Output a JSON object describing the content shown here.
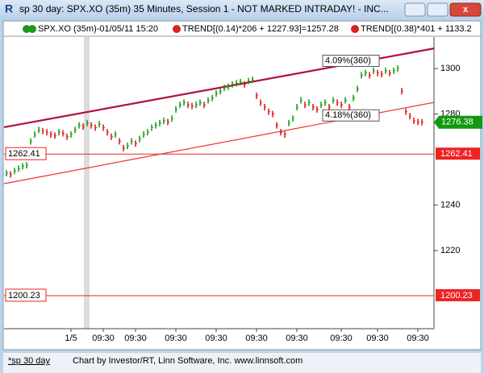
{
  "window": {
    "title": "sp 30 day: SPX.XO (35m) 35 Minutes, Session 1 - NOT MARKED INTRADAY! - INC...",
    "legend": [
      "SPX.XO (35m)-01/05/11 15:20",
      "TREND[(0.14)*206 + 1227.93]=1257.28",
      "TREND[(0.38)*401 + 1133.2"
    ],
    "tab": "*sp 30 day",
    "footer": "Chart by Investor/RT, Linn Software, Inc. www.linnsoft.com"
  },
  "chart_data": {
    "type": "bar-ticks",
    "categories": [
      null,
      null,
      null,
      null,
      null,
      null,
      null,
      null,
      null,
      null,
      null,
      null,
      null,
      null,
      null,
      null,
      "1/5",
      null,
      null,
      null,
      null,
      null,
      null,
      null,
      "09:30",
      null,
      null,
      null,
      null,
      null,
      null,
      null,
      "09:30",
      null,
      null,
      null,
      null,
      null,
      null,
      null,
      null,
      null,
      "09:30",
      null,
      null,
      null,
      null,
      null,
      null,
      null,
      null,
      null,
      "09:30",
      null,
      null,
      null,
      null,
      null,
      null,
      null,
      null,
      null,
      "09:30",
      null,
      null,
      null,
      null,
      null,
      null,
      null,
      null,
      null,
      "09:30",
      null,
      null,
      null,
      null,
      null,
      null,
      null,
      null,
      null,
      null,
      "09:30",
      null,
      null,
      null,
      null,
      null,
      null,
      null,
      null,
      "09:30",
      null,
      null,
      null,
      null,
      null,
      null,
      null,
      null,
      null,
      "09:30",
      null
    ],
    "values": [
      1254,
      1253.5,
      1255,
      1256,
      1257,
      1257.5,
      1268,
      1271,
      1273,
      1272.5,
      1272,
      1271,
      1270.5,
      1272,
      1271.5,
      1270,
      1271,
      1273,
      1275,
      1274.5,
      1276,
      1275,
      1274,
      1275.5,
      1274,
      1272,
      1270,
      1271,
      1268,
      1265,
      1266,
      1268,
      1267,
      1269,
      1271,
      1272,
      1274,
      1275,
      1276,
      1277,
      1276.5,
      1278,
      1282,
      1284,
      1285,
      1284,
      1283.5,
      1284,
      1285,
      1284,
      1286,
      1287,
      1289,
      1290,
      1291.5,
      1292,
      1293,
      1293.5,
      1294,
      1293,
      1294.5,
      1295,
      1288,
      1285,
      1283,
      1281,
      1280,
      1275,
      1272,
      1271,
      1276,
      1278,
      1283,
      1286,
      1284,
      1285,
      1283,
      1282,
      1284,
      1285,
      1283,
      1286,
      1285,
      1284,
      1286,
      1283,
      1287,
      1291,
      1297,
      1298,
      1297,
      1299,
      1298,
      1297.5,
      1299,
      1298,
      1299,
      1300,
      1290,
      1281,
      1279,
      1277,
      1276.5,
      1276.38
    ],
    "up_color": "#119911",
    "down_color": "#dd1111",
    "ylim": [
      1185.7,
      1313.8
    ],
    "yticks": [
      1220,
      1240,
      1280,
      1300
    ],
    "levels": [
      {
        "value": 1262.41,
        "color": "#ee2222"
      },
      {
        "value": 1200.23,
        "color": "#ee2222"
      }
    ],
    "last": {
      "value": 1276.38,
      "color": "#119911"
    },
    "trendlines": [
      {
        "label": "4.09%(360)",
        "start": 1274.2,
        "end": 1308.8,
        "color": "#b0103a"
      },
      {
        "label": "4.18%(360)",
        "start": 1249.4,
        "end": 1285.1,
        "color": "#ee3333"
      }
    ]
  }
}
